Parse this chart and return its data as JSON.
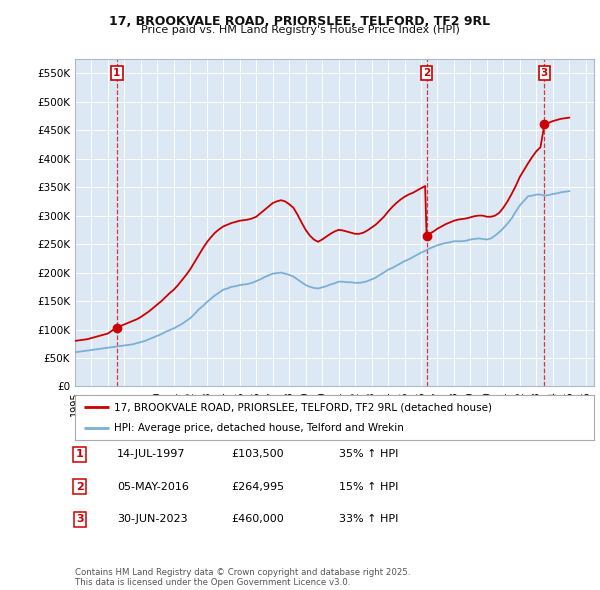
{
  "title1": "17, BROOKVALE ROAD, PRIORSLEE, TELFORD, TF2 9RL",
  "title2": "Price paid vs. HM Land Registry's House Price Index (HPI)",
  "fig_bg_color": "#ffffff",
  "plot_bg_color": "#dce9f5",
  "red_line_label": "17, BROOKVALE ROAD, PRIORSLEE, TELFORD, TF2 9RL (detached house)",
  "blue_line_label": "HPI: Average price, detached house, Telford and Wrekin",
  "transactions": [
    {
      "num": 1,
      "date": "14-JUL-1997",
      "price": 103500,
      "year": 1997.54,
      "hpi_pct": "35% ↑ HPI"
    },
    {
      "num": 2,
      "date": "05-MAY-2016",
      "price": 264995,
      "year": 2016.34,
      "hpi_pct": "15% ↑ HPI"
    },
    {
      "num": 3,
      "date": "30-JUN-2023",
      "price": 460000,
      "year": 2023.49,
      "hpi_pct": "33% ↑ HPI"
    }
  ],
  "footer": "Contains HM Land Registry data © Crown copyright and database right 2025.\nThis data is licensed under the Open Government Licence v3.0.",
  "ylim": [
    0,
    575000
  ],
  "xlim_start": 1995.0,
  "xlim_end": 2026.5,
  "yticks": [
    0,
    50000,
    100000,
    150000,
    200000,
    250000,
    300000,
    350000,
    400000,
    450000,
    500000,
    550000
  ],
  "ytick_labels": [
    "£0",
    "£50K",
    "£100K",
    "£150K",
    "£200K",
    "£250K",
    "£300K",
    "£350K",
    "£400K",
    "£450K",
    "£500K",
    "£550K"
  ],
  "red_color": "#cc0000",
  "blue_color": "#7bafd4",
  "grid_color": "#ffffff",
  "hpi_years": [
    1995.0,
    1995.25,
    1995.5,
    1995.75,
    1996.0,
    1996.25,
    1996.5,
    1996.75,
    1997.0,
    1997.25,
    1997.5,
    1997.75,
    1998.0,
    1998.25,
    1998.5,
    1998.75,
    1999.0,
    1999.25,
    1999.5,
    1999.75,
    2000.0,
    2000.25,
    2000.5,
    2000.75,
    2001.0,
    2001.25,
    2001.5,
    2001.75,
    2002.0,
    2002.25,
    2002.5,
    2002.75,
    2003.0,
    2003.25,
    2003.5,
    2003.75,
    2004.0,
    2004.25,
    2004.5,
    2004.75,
    2005.0,
    2005.25,
    2005.5,
    2005.75,
    2006.0,
    2006.25,
    2006.5,
    2006.75,
    2007.0,
    2007.25,
    2007.5,
    2007.75,
    2008.0,
    2008.25,
    2008.5,
    2008.75,
    2009.0,
    2009.25,
    2009.5,
    2009.75,
    2010.0,
    2010.25,
    2010.5,
    2010.75,
    2011.0,
    2011.25,
    2011.5,
    2011.75,
    2012.0,
    2012.25,
    2012.5,
    2012.75,
    2013.0,
    2013.25,
    2013.5,
    2013.75,
    2014.0,
    2014.25,
    2014.5,
    2014.75,
    2015.0,
    2015.25,
    2015.5,
    2015.75,
    2016.0,
    2016.25,
    2016.5,
    2016.75,
    2017.0,
    2017.25,
    2017.5,
    2017.75,
    2018.0,
    2018.25,
    2018.5,
    2018.75,
    2019.0,
    2019.25,
    2019.5,
    2019.75,
    2020.0,
    2020.25,
    2020.5,
    2020.75,
    2021.0,
    2021.25,
    2021.5,
    2021.75,
    2022.0,
    2022.25,
    2022.5,
    2022.75,
    2023.0,
    2023.25,
    2023.5,
    2023.75,
    2024.0,
    2024.25,
    2024.5,
    2024.75,
    2025.0
  ],
  "hpi_values": [
    60000,
    61000,
    62000,
    63000,
    64000,
    65000,
    66000,
    67000,
    68000,
    69000,
    70000,
    71000,
    72000,
    73000,
    74000,
    76000,
    78000,
    80000,
    83000,
    86000,
    89000,
    92000,
    96000,
    99000,
    102000,
    106000,
    110000,
    115000,
    120000,
    127000,
    135000,
    141000,
    148000,
    154000,
    160000,
    165000,
    170000,
    172000,
    175000,
    176000,
    178000,
    179000,
    180000,
    182000,
    185000,
    188000,
    192000,
    195000,
    198000,
    199000,
    200000,
    198000,
    196000,
    193000,
    188000,
    183000,
    178000,
    175000,
    173000,
    172000,
    174000,
    176000,
    179000,
    181000,
    184000,
    184000,
    183000,
    183000,
    182000,
    182000,
    183000,
    185000,
    188000,
    191000,
    196000,
    200000,
    205000,
    208000,
    212000,
    216000,
    220000,
    223000,
    227000,
    231000,
    235000,
    238000,
    242000,
    245000,
    248000,
    250000,
    252000,
    253000,
    255000,
    255000,
    255000,
    256000,
    258000,
    259000,
    260000,
    259000,
    258000,
    260000,
    265000,
    271000,
    278000,
    286000,
    295000,
    307000,
    318000,
    326000,
    334000,
    335000,
    337000,
    337000,
    335000,
    336000,
    338000,
    339000,
    341000,
    342000,
    343000
  ],
  "red_years": [
    1995.0,
    1995.25,
    1995.5,
    1995.75,
    1996.0,
    1996.25,
    1996.5,
    1996.75,
    1997.0,
    1997.25,
    1997.54,
    1997.75,
    1998.0,
    1998.25,
    1998.5,
    1998.75,
    1999.0,
    1999.25,
    1999.5,
    1999.75,
    2000.0,
    2000.25,
    2000.5,
    2000.75,
    2001.0,
    2001.25,
    2001.5,
    2001.75,
    2002.0,
    2002.25,
    2002.5,
    2002.75,
    2003.0,
    2003.25,
    2003.5,
    2003.75,
    2004.0,
    2004.25,
    2004.5,
    2004.75,
    2005.0,
    2005.25,
    2005.5,
    2005.75,
    2006.0,
    2006.25,
    2006.5,
    2006.75,
    2007.0,
    2007.25,
    2007.5,
    2007.75,
    2008.0,
    2008.25,
    2008.5,
    2008.75,
    2009.0,
    2009.25,
    2009.5,
    2009.75,
    2010.0,
    2010.25,
    2010.5,
    2010.75,
    2011.0,
    2011.25,
    2011.5,
    2011.75,
    2012.0,
    2012.25,
    2012.5,
    2012.75,
    2013.0,
    2013.25,
    2013.5,
    2013.75,
    2014.0,
    2014.25,
    2014.5,
    2014.75,
    2015.0,
    2015.25,
    2015.5,
    2015.75,
    2016.0,
    2016.25,
    2016.34,
    2016.5,
    2016.75,
    2017.0,
    2017.25,
    2017.5,
    2017.75,
    2018.0,
    2018.25,
    2018.5,
    2018.75,
    2019.0,
    2019.25,
    2019.5,
    2019.75,
    2020.0,
    2020.25,
    2020.5,
    2020.75,
    2021.0,
    2021.25,
    2021.5,
    2021.75,
    2022.0,
    2022.25,
    2022.5,
    2022.75,
    2023.0,
    2023.25,
    2023.49,
    2023.75,
    2024.0,
    2024.25,
    2024.5,
    2025.0
  ],
  "red_values": [
    80000,
    81000,
    82000,
    83000,
    85000,
    87000,
    89000,
    91000,
    93000,
    98000,
    103500,
    106000,
    109000,
    112000,
    115000,
    118000,
    122000,
    127000,
    132000,
    138000,
    144000,
    150000,
    157000,
    164000,
    170000,
    178000,
    187000,
    196000,
    206000,
    218000,
    230000,
    242000,
    253000,
    262000,
    270000,
    276000,
    281000,
    284000,
    287000,
    289000,
    291000,
    292000,
    293000,
    295000,
    298000,
    304000,
    310000,
    316000,
    322000,
    325000,
    327000,
    325000,
    320000,
    314000,
    302000,
    288000,
    275000,
    265000,
    258000,
    254000,
    258000,
    263000,
    268000,
    272000,
    275000,
    274000,
    272000,
    270000,
    268000,
    268000,
    270000,
    274000,
    279000,
    284000,
    291000,
    298000,
    307000,
    315000,
    322000,
    328000,
    333000,
    337000,
    340000,
    344000,
    348000,
    352000,
    264995,
    268000,
    272000,
    277000,
    281000,
    285000,
    288000,
    291000,
    293000,
    294000,
    295000,
    297000,
    299000,
    300000,
    300000,
    298000,
    298000,
    300000,
    305000,
    314000,
    325000,
    338000,
    352000,
    368000,
    380000,
    392000,
    403000,
    413000,
    420000,
    460000,
    463000,
    466000,
    468000,
    470000,
    472000
  ]
}
